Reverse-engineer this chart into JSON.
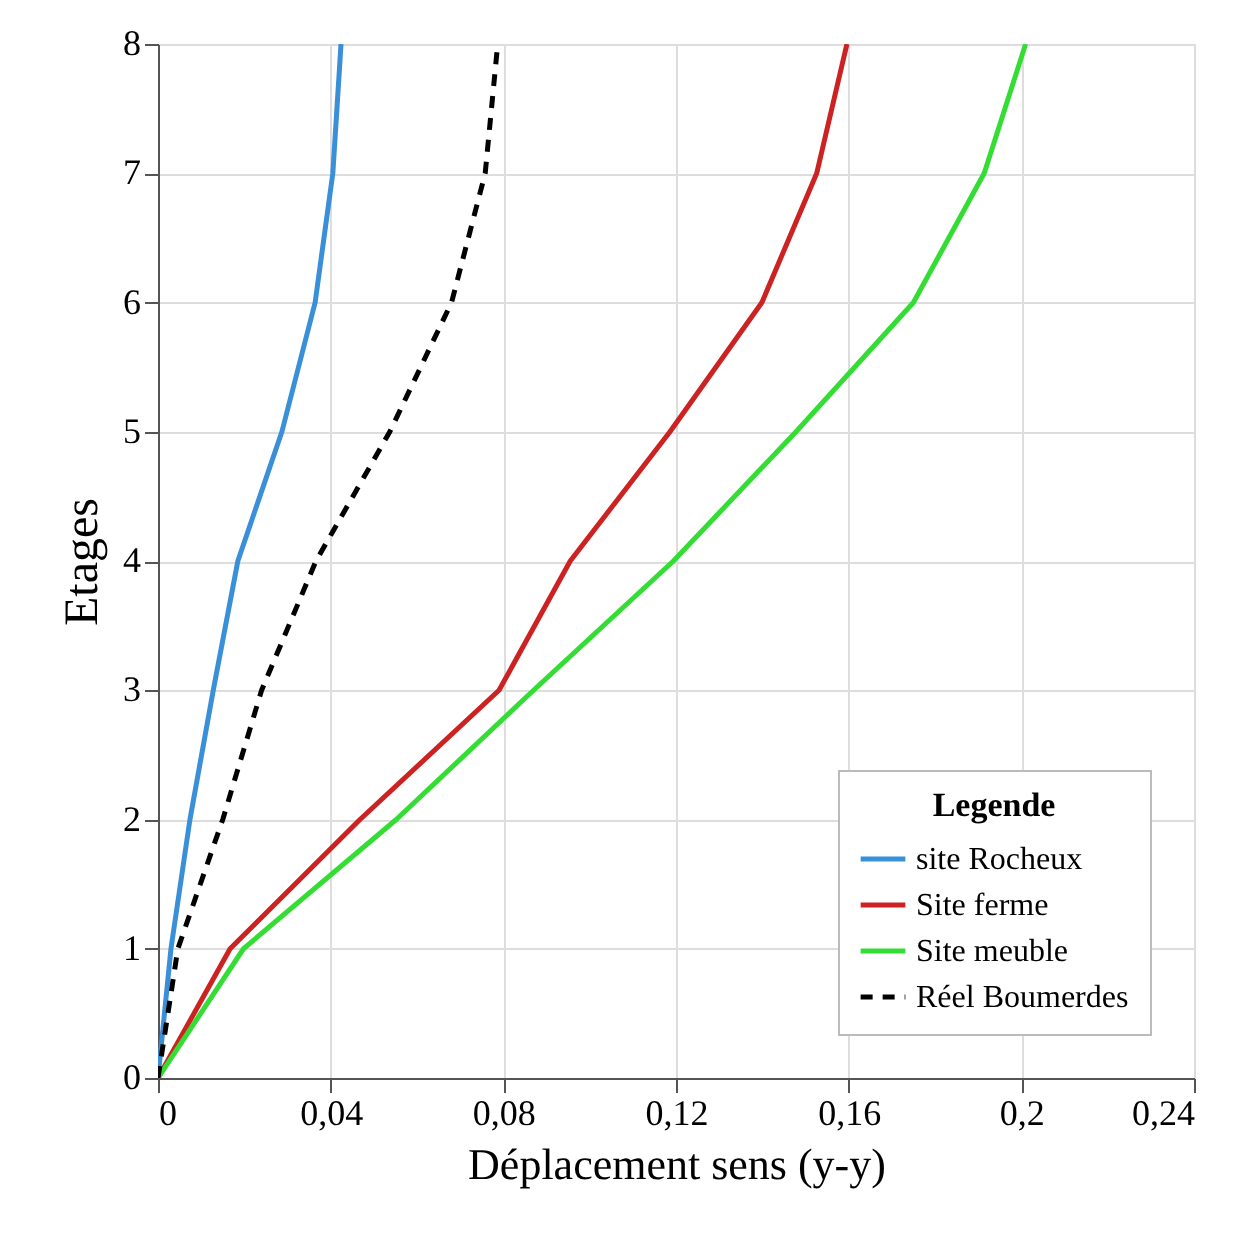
{
  "chart_data": {
    "type": "line",
    "xlabel": "Déplacement sens (y-y)",
    "ylabel": "Etages",
    "legend_title": "Legende",
    "legend": "bottom right",
    "grid": true,
    "xlim": [
      0,
      0.24
    ],
    "xticks": [
      0,
      {
        "value": 0.04,
        "label": "0,04"
      },
      {
        "value": 0.08,
        "label": "0,08"
      },
      {
        "value": 0.12,
        "label": "0,12"
      },
      {
        "value": 0.16,
        "label": "0,16"
      },
      {
        "value": 0.2,
        "label": "0,2"
      },
      {
        "value": 0.24,
        "label": "0,24"
      }
    ],
    "ylim": [
      0,
      8
    ],
    "yticks": [
      0,
      1,
      2,
      3,
      4,
      5,
      6,
      7,
      8
    ],
    "series": [
      {
        "name": "site Rocheux",
        "color": "#3a8fd9",
        "line_style": "solid",
        "x": [
          0,
          0.003,
          0.0074,
          0.0128,
          0.0185,
          0.0287,
          0.0364,
          0.0405,
          0.0424
        ],
        "values": [
          0,
          1,
          2,
          3,
          4,
          5,
          6,
          7,
          8
        ]
      },
      {
        "name": "Site ferme",
        "color": "#cc2222",
        "line_style": "solid",
        "x": [
          0,
          0.0167,
          0.0468,
          0.079,
          0.0955,
          0.1186,
          0.1399,
          0.1526,
          0.1596
        ],
        "values": [
          0,
          1,
          2,
          3,
          4,
          5,
          6,
          7,
          8
        ]
      },
      {
        "name": "Site meuble",
        "color": "#33dd33",
        "line_style": "solid",
        "x": [
          0,
          0.0198,
          0.0552,
          0.087,
          0.1194,
          0.1478,
          0.175,
          0.1914,
          0.201
        ],
        "values": [
          0,
          1,
          2,
          3,
          4,
          5,
          6,
          7,
          8
        ]
      },
      {
        "name": "Réel Boumerdes",
        "color": "#000000",
        "line_style": "dashed",
        "x": [
          0,
          0.0046,
          0.015,
          0.024,
          0.0366,
          0.0537,
          0.068,
          0.0758,
          0.0787
        ],
        "values": [
          0,
          1,
          2,
          3,
          4,
          5,
          6,
          7,
          8
        ]
      }
    ]
  }
}
